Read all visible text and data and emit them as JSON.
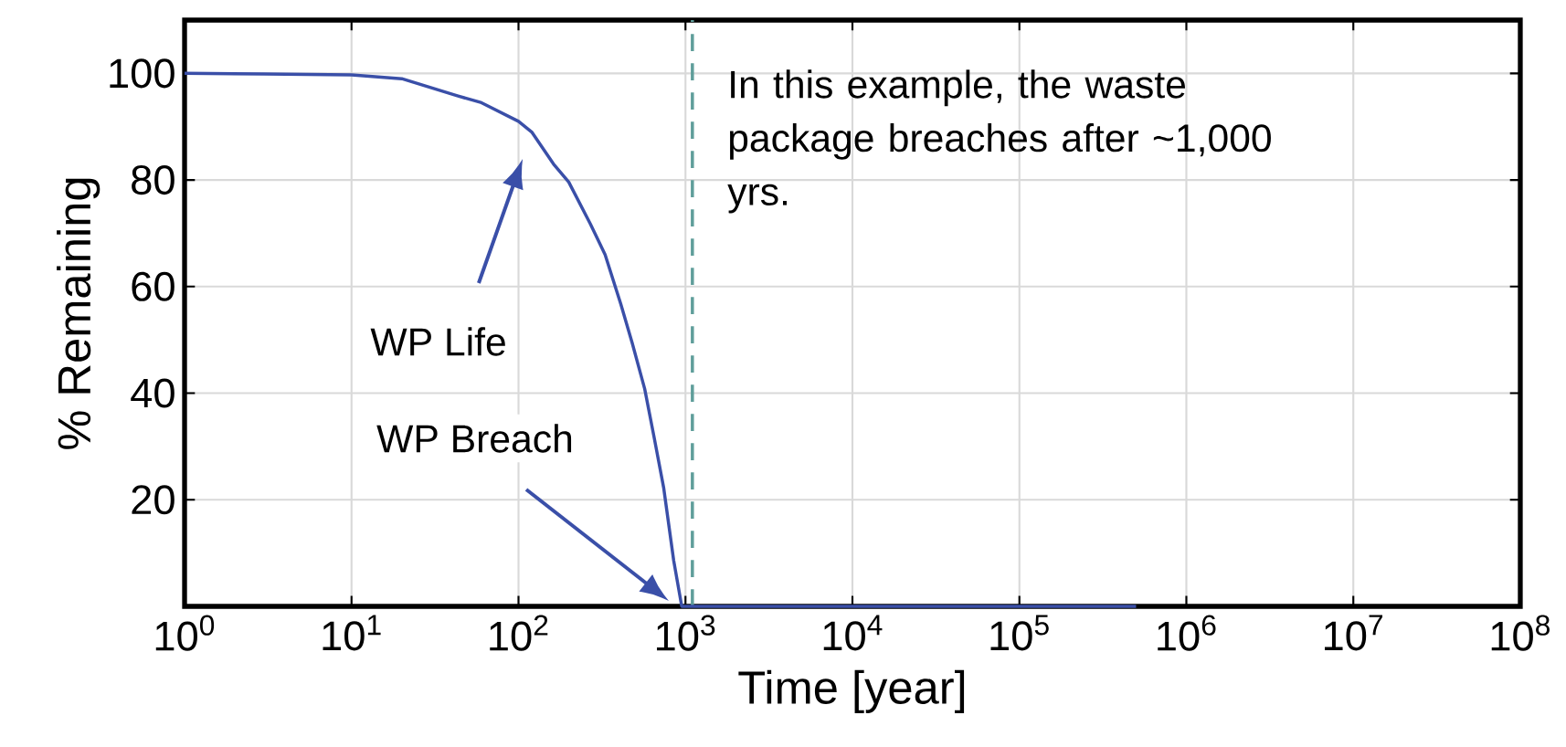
{
  "chart_data": {
    "type": "line",
    "xlabel": "Time [year]",
    "ylabel": "% Remaining",
    "log": "x",
    "xlim": [
      1,
      100000000
    ],
    "ylim": [
      0,
      110
    ],
    "xticks": [
      {
        "value": 1,
        "label": "10$^{0}$"
      },
      {
        "value": 10,
        "label": "10$^{1}$"
      },
      {
        "value": 100,
        "label": "10$^{2}$"
      },
      {
        "value": 1000,
        "label": "10$^{3}$"
      },
      {
        "value": 10000,
        "label": "10$^{4}$"
      },
      {
        "value": 100000,
        "label": "10$^{5}$"
      },
      {
        "value": 1000000,
        "label": "10$^{6}$"
      },
      {
        "value": 10000000,
        "label": "10$^{7}$"
      },
      {
        "value": 100000000,
        "label": "10$^{8}$"
      }
    ],
    "yticks": [
      20,
      40,
      60,
      80,
      100
    ],
    "grid": true,
    "marker": "none",
    "line_style": "solid",
    "series": [
      {
        "color": "#3a4fa8",
        "x": [
          1,
          3,
          10,
          20,
          43,
          60,
          100,
          120,
          162,
          200,
          269,
          330,
          410,
          480,
          570,
          650,
          740,
          850,
          950,
          500000
        ],
        "values": [
          100,
          99.9,
          99.7,
          99,
          95.8,
          94.5,
          91,
          89,
          83,
          79.6,
          71.8,
          66,
          56.7,
          49.4,
          40.8,
          31.6,
          22.3,
          8.6,
          0,
          0
        ]
      }
    ],
    "ref_lines": [
      {
        "axis": "x",
        "value": 1100,
        "color": "#5f9e9a",
        "line_style": "dashed"
      }
    ],
    "annotations": [
      "In this example, the waste package breaches after ~1,000 yrs.",
      "WP Life",
      "WP Breach"
    ]
  }
}
